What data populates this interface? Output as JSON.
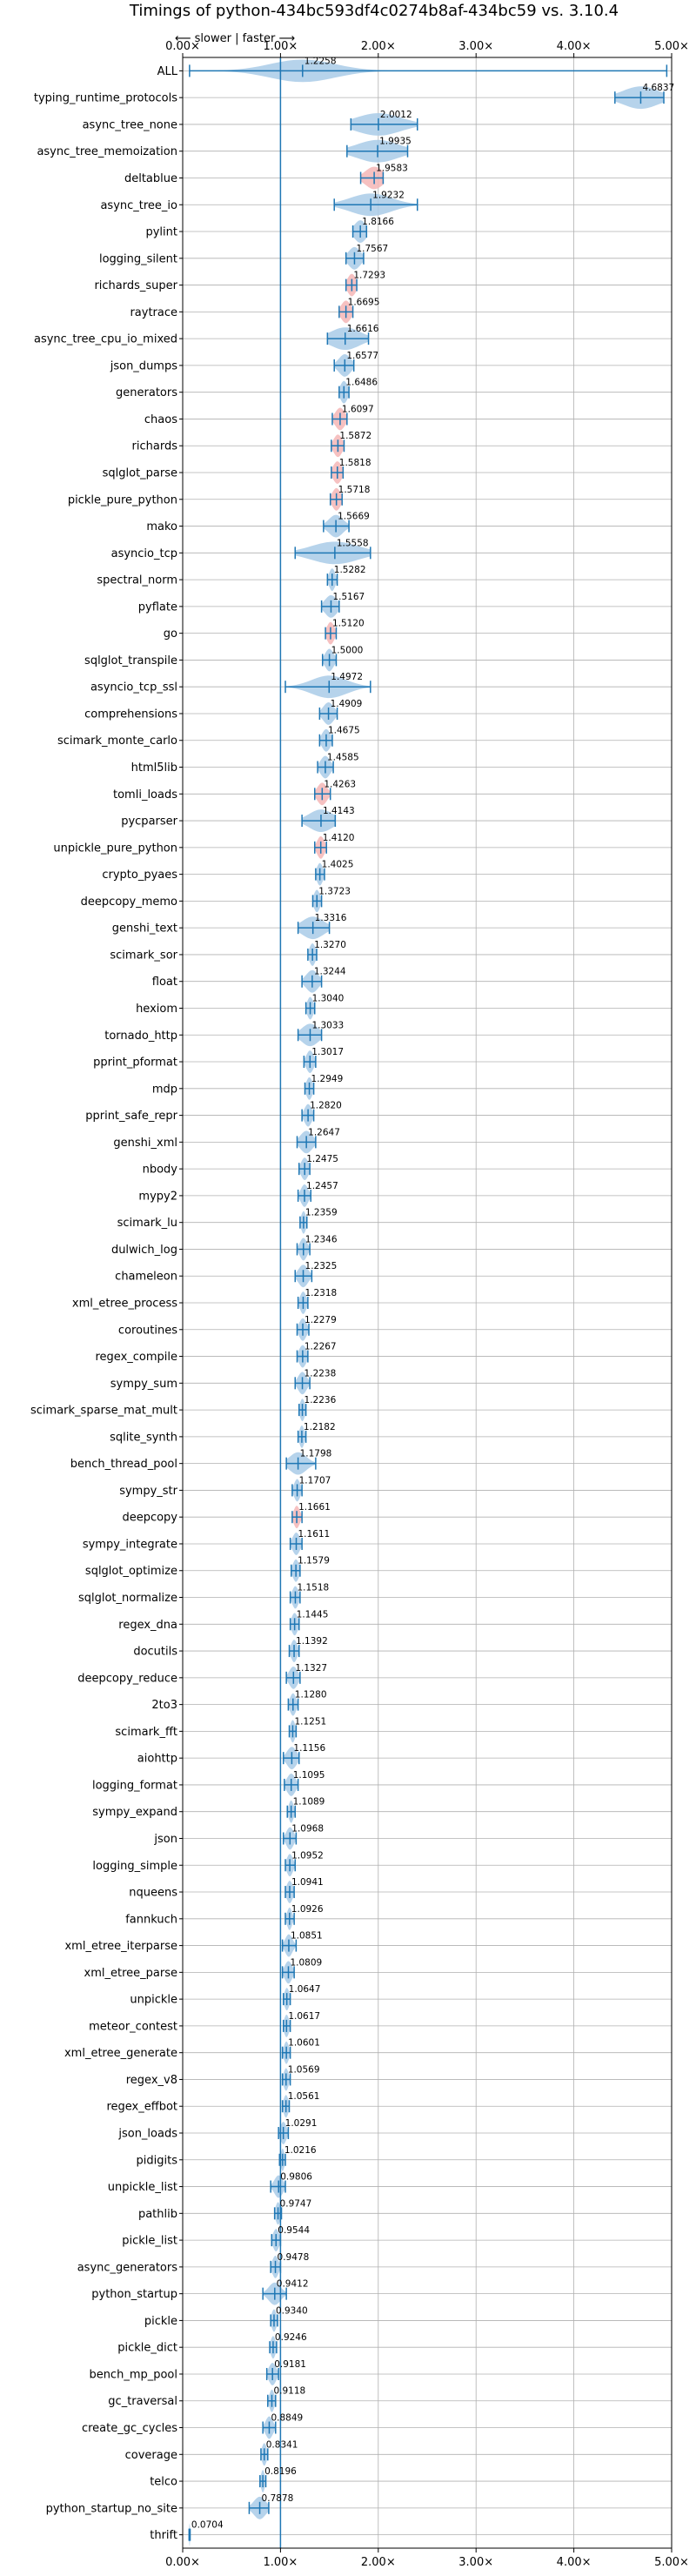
{
  "chart_data": {
    "type": "violin",
    "title": "Timings of python-434bc593df4c0274b8af-434bc59 vs. 3.10.4",
    "direction_note": "⟵ slower | faster ⟶",
    "xlim": [
      0,
      5
    ],
    "x_ticks": [
      "0.00×",
      "1.00×",
      "2.00×",
      "3.00×",
      "4.00×",
      "5.00×"
    ],
    "x_tick_values": [
      0,
      1,
      2,
      3,
      4,
      5
    ],
    "reference_line": 1.0,
    "grid": true,
    "colors": {
      "body": "#a9cbe8",
      "body_slower": "#f4b6b6",
      "line": "#1f77b4",
      "reference": "#1f77b4",
      "grid": "#b0b0b0"
    },
    "benchmarks": [
      {
        "name": "ALL",
        "value": 1.2258,
        "min": 0.07,
        "max": 4.95,
        "spread": 0.55
      },
      {
        "name": "typing_runtime_protocols",
        "value": 4.6837,
        "min": 4.42,
        "max": 4.92,
        "spread": 0.3
      },
      {
        "name": "async_tree_none",
        "value": 2.0012,
        "min": 1.72,
        "max": 2.4,
        "spread": 0.38
      },
      {
        "name": "async_tree_memoization",
        "value": 1.9935,
        "min": 1.68,
        "max": 2.3,
        "spread": 0.35
      },
      {
        "name": "deltablue",
        "value": 1.9583,
        "min": 1.82,
        "max": 2.05,
        "spread": 0.15,
        "slower": true
      },
      {
        "name": "async_tree_io",
        "value": 1.9232,
        "min": 1.55,
        "max": 2.4,
        "spread": 0.35
      },
      {
        "name": "pylint",
        "value": 1.8166,
        "min": 1.74,
        "max": 1.88,
        "spread": 0.1
      },
      {
        "name": "logging_silent",
        "value": 1.7567,
        "min": 1.67,
        "max": 1.85,
        "spread": 0.1
      },
      {
        "name": "richards_super",
        "value": 1.7293,
        "min": 1.67,
        "max": 1.78,
        "spread": 0.07,
        "slower": true
      },
      {
        "name": "raytrace",
        "value": 1.6695,
        "min": 1.6,
        "max": 1.74,
        "spread": 0.08,
        "slower": true
      },
      {
        "name": "async_tree_cpu_io_mixed",
        "value": 1.6616,
        "min": 1.48,
        "max": 1.9,
        "spread": 0.25
      },
      {
        "name": "json_dumps",
        "value": 1.6577,
        "min": 1.55,
        "max": 1.75,
        "spread": 0.1
      },
      {
        "name": "generators",
        "value": 1.6486,
        "min": 1.6,
        "max": 1.7,
        "spread": 0.06
      },
      {
        "name": "chaos",
        "value": 1.6097,
        "min": 1.53,
        "max": 1.68,
        "spread": 0.08,
        "slower": true
      },
      {
        "name": "richards",
        "value": 1.5872,
        "min": 1.52,
        "max": 1.65,
        "spread": 0.07,
        "slower": true
      },
      {
        "name": "sqlglot_parse",
        "value": 1.5818,
        "min": 1.52,
        "max": 1.64,
        "spread": 0.07,
        "slower": true
      },
      {
        "name": "pickle_pure_python",
        "value": 1.5718,
        "min": 1.51,
        "max": 1.63,
        "spread": 0.07,
        "slower": true
      },
      {
        "name": "mako",
        "value": 1.5669,
        "min": 1.44,
        "max": 1.7,
        "spread": 0.12
      },
      {
        "name": "asyncio_tcp",
        "value": 1.5558,
        "min": 1.15,
        "max": 1.92,
        "spread": 0.4
      },
      {
        "name": "spectral_norm",
        "value": 1.5282,
        "min": 1.48,
        "max": 1.58,
        "spread": 0.05
      },
      {
        "name": "pyflate",
        "value": 1.5167,
        "min": 1.42,
        "max": 1.6,
        "spread": 0.1
      },
      {
        "name": "go",
        "value": 1.512,
        "min": 1.46,
        "max": 1.57,
        "spread": 0.06,
        "slower": true
      },
      {
        "name": "sqlglot_transpile",
        "value": 1.5,
        "min": 1.43,
        "max": 1.57,
        "spread": 0.07
      },
      {
        "name": "asyncio_tcp_ssl",
        "value": 1.4972,
        "min": 1.05,
        "max": 1.92,
        "spread": 0.3
      },
      {
        "name": "comprehensions",
        "value": 1.4909,
        "min": 1.4,
        "max": 1.58,
        "spread": 0.09
      },
      {
        "name": "scimark_monte_carlo",
        "value": 1.4675,
        "min": 1.4,
        "max": 1.53,
        "spread": 0.07
      },
      {
        "name": "html5lib",
        "value": 1.4585,
        "min": 1.38,
        "max": 1.54,
        "spread": 0.08
      },
      {
        "name": "tomli_loads",
        "value": 1.4263,
        "min": 1.35,
        "max": 1.51,
        "spread": 0.08,
        "slower": true
      },
      {
        "name": "pycparser",
        "value": 1.4143,
        "min": 1.22,
        "max": 1.56,
        "spread": 0.2
      },
      {
        "name": "unpickle_pure_python",
        "value": 1.412,
        "min": 1.35,
        "max": 1.47,
        "spread": 0.06,
        "slower": true
      },
      {
        "name": "crypto_pyaes",
        "value": 1.4025,
        "min": 1.36,
        "max": 1.45,
        "spread": 0.05
      },
      {
        "name": "deepcopy_memo",
        "value": 1.3723,
        "min": 1.33,
        "max": 1.42,
        "spread": 0.05
      },
      {
        "name": "genshi_text",
        "value": 1.3316,
        "min": 1.18,
        "max": 1.5,
        "spread": 0.18
      },
      {
        "name": "scimark_sor",
        "value": 1.327,
        "min": 1.28,
        "max": 1.37,
        "spread": 0.05
      },
      {
        "name": "float",
        "value": 1.3244,
        "min": 1.22,
        "max": 1.42,
        "spread": 0.1
      },
      {
        "name": "hexiom",
        "value": 1.304,
        "min": 1.26,
        "max": 1.35,
        "spread": 0.05
      },
      {
        "name": "tornado_http",
        "value": 1.3033,
        "min": 1.18,
        "max": 1.42,
        "spread": 0.14
      },
      {
        "name": "pprint_pformat",
        "value": 1.3017,
        "min": 1.24,
        "max": 1.36,
        "spread": 0.06
      },
      {
        "name": "mdp",
        "value": 1.2949,
        "min": 1.25,
        "max": 1.34,
        "spread": 0.05
      },
      {
        "name": "pprint_safe_repr",
        "value": 1.282,
        "min": 1.22,
        "max": 1.34,
        "spread": 0.06
      },
      {
        "name": "genshi_xml",
        "value": 1.2647,
        "min": 1.17,
        "max": 1.36,
        "spread": 0.1
      },
      {
        "name": "nbody",
        "value": 1.2475,
        "min": 1.19,
        "max": 1.3,
        "spread": 0.06
      },
      {
        "name": "mypy2",
        "value": 1.2457,
        "min": 1.18,
        "max": 1.31,
        "spread": 0.06
      },
      {
        "name": "scimark_lu",
        "value": 1.2359,
        "min": 1.2,
        "max": 1.27,
        "spread": 0.04
      },
      {
        "name": "dulwich_log",
        "value": 1.2346,
        "min": 1.17,
        "max": 1.3,
        "spread": 0.06
      },
      {
        "name": "chameleon",
        "value": 1.2325,
        "min": 1.15,
        "max": 1.32,
        "spread": 0.08
      },
      {
        "name": "xml_etree_process",
        "value": 1.2318,
        "min": 1.18,
        "max": 1.28,
        "spread": 0.05
      },
      {
        "name": "coroutines",
        "value": 1.2279,
        "min": 1.17,
        "max": 1.29,
        "spread": 0.06
      },
      {
        "name": "regex_compile",
        "value": 1.2267,
        "min": 1.17,
        "max": 1.28,
        "spread": 0.06
      },
      {
        "name": "sympy_sum",
        "value": 1.2238,
        "min": 1.15,
        "max": 1.3,
        "spread": 0.07
      },
      {
        "name": "scimark_sparse_mat_mult",
        "value": 1.2236,
        "min": 1.19,
        "max": 1.26,
        "spread": 0.04
      },
      {
        "name": "sqlite_synth",
        "value": 1.2182,
        "min": 1.18,
        "max": 1.26,
        "spread": 0.04
      },
      {
        "name": "bench_thread_pool",
        "value": 1.1798,
        "min": 1.06,
        "max": 1.36,
        "spread": 0.14
      },
      {
        "name": "sympy_str",
        "value": 1.1707,
        "min": 1.12,
        "max": 1.22,
        "spread": 0.05
      },
      {
        "name": "deepcopy",
        "value": 1.1661,
        "min": 1.12,
        "max": 1.22,
        "spread": 0.05,
        "slower": true
      },
      {
        "name": "sympy_integrate",
        "value": 1.1611,
        "min": 1.1,
        "max": 1.22,
        "spread": 0.06
      },
      {
        "name": "sqlglot_optimize",
        "value": 1.1579,
        "min": 1.11,
        "max": 1.2,
        "spread": 0.05
      },
      {
        "name": "sqlglot_normalize",
        "value": 1.1518,
        "min": 1.1,
        "max": 1.2,
        "spread": 0.05
      },
      {
        "name": "regex_dna",
        "value": 1.1445,
        "min": 1.1,
        "max": 1.19,
        "spread": 0.05
      },
      {
        "name": "docutils",
        "value": 1.1392,
        "min": 1.09,
        "max": 1.19,
        "spread": 0.05
      },
      {
        "name": "deepcopy_reduce",
        "value": 1.1327,
        "min": 1.06,
        "max": 1.2,
        "spread": 0.07
      },
      {
        "name": "2to3",
        "value": 1.128,
        "min": 1.08,
        "max": 1.18,
        "spread": 0.05
      },
      {
        "name": "scimark_fft",
        "value": 1.1251,
        "min": 1.09,
        "max": 1.16,
        "spread": 0.04
      },
      {
        "name": "aiohttp",
        "value": 1.1156,
        "min": 1.03,
        "max": 1.19,
        "spread": 0.08
      },
      {
        "name": "logging_format",
        "value": 1.1095,
        "min": 1.04,
        "max": 1.18,
        "spread": 0.07
      },
      {
        "name": "sympy_expand",
        "value": 1.1089,
        "min": 1.07,
        "max": 1.15,
        "spread": 0.04
      },
      {
        "name": "json",
        "value": 1.0968,
        "min": 1.03,
        "max": 1.16,
        "spread": 0.06
      },
      {
        "name": "logging_simple",
        "value": 1.0952,
        "min": 1.05,
        "max": 1.15,
        "spread": 0.05
      },
      {
        "name": "nqueens",
        "value": 1.0941,
        "min": 1.05,
        "max": 1.14,
        "spread": 0.05
      },
      {
        "name": "fannkuch",
        "value": 1.0926,
        "min": 1.05,
        "max": 1.14,
        "spread": 0.04
      },
      {
        "name": "xml_etree_iterparse",
        "value": 1.0851,
        "min": 1.02,
        "max": 1.16,
        "spread": 0.06
      },
      {
        "name": "xml_etree_parse",
        "value": 1.0809,
        "min": 1.02,
        "max": 1.14,
        "spread": 0.06
      },
      {
        "name": "unpickle",
        "value": 1.0647,
        "min": 1.03,
        "max": 1.1,
        "spread": 0.04
      },
      {
        "name": "meteor_contest",
        "value": 1.0617,
        "min": 1.03,
        "max": 1.1,
        "spread": 0.04
      },
      {
        "name": "xml_etree_generate",
        "value": 1.0601,
        "min": 1.02,
        "max": 1.1,
        "spread": 0.04
      },
      {
        "name": "regex_v8",
        "value": 1.0569,
        "min": 1.02,
        "max": 1.1,
        "spread": 0.04
      },
      {
        "name": "regex_effbot",
        "value": 1.0561,
        "min": 1.02,
        "max": 1.09,
        "spread": 0.04
      },
      {
        "name": "json_loads",
        "value": 1.0291,
        "min": 0.98,
        "max": 1.08,
        "spread": 0.05
      },
      {
        "name": "pidigits",
        "value": 1.0216,
        "min": 0.99,
        "max": 1.05,
        "spread": 0.03
      },
      {
        "name": "unpickle_list",
        "value": 0.9806,
        "min": 0.9,
        "max": 1.05,
        "spread": 0.07
      },
      {
        "name": "pathlib",
        "value": 0.9747,
        "min": 0.94,
        "max": 1.01,
        "spread": 0.04
      },
      {
        "name": "pickle_list",
        "value": 0.9544,
        "min": 0.91,
        "max": 1.0,
        "spread": 0.05
      },
      {
        "name": "async_generators",
        "value": 0.9478,
        "min": 0.9,
        "max": 1.0,
        "spread": 0.05
      },
      {
        "name": "python_startup",
        "value": 0.9412,
        "min": 0.82,
        "max": 1.06,
        "spread": 0.1
      },
      {
        "name": "pickle",
        "value": 0.934,
        "min": 0.9,
        "max": 0.97,
        "spread": 0.04
      },
      {
        "name": "pickle_dict",
        "value": 0.9246,
        "min": 0.89,
        "max": 0.96,
        "spread": 0.04
      },
      {
        "name": "bench_mp_pool",
        "value": 0.9181,
        "min": 0.86,
        "max": 0.98,
        "spread": 0.06
      },
      {
        "name": "gc_traversal",
        "value": 0.9118,
        "min": 0.87,
        "max": 0.95,
        "spread": 0.04
      },
      {
        "name": "create_gc_cycles",
        "value": 0.8849,
        "min": 0.82,
        "max": 0.95,
        "spread": 0.06
      },
      {
        "name": "coverage",
        "value": 0.8341,
        "min": 0.8,
        "max": 0.87,
        "spread": 0.04
      },
      {
        "name": "telco",
        "value": 0.8196,
        "min": 0.79,
        "max": 0.85,
        "spread": 0.03
      },
      {
        "name": "python_startup_no_site",
        "value": 0.7878,
        "min": 0.68,
        "max": 0.88,
        "spread": 0.1
      },
      {
        "name": "thrift",
        "value": 0.0704,
        "min": 0.065,
        "max": 0.076,
        "spread": 0.008
      }
    ]
  }
}
